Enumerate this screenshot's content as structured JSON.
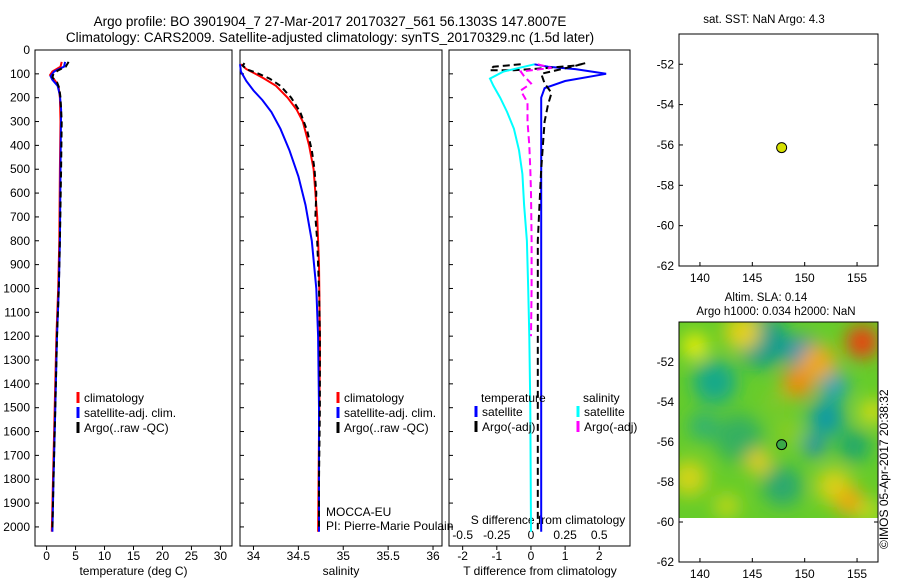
{
  "title_line1": "Argo profile: BO 3901904_7 27-Mar-2017 20170327_561 56.1303S 147.8007E",
  "title_line2": "Climatology: CARS2009. Satellite-adjusted climatology: synTS_20170329.nc (1.5d later)",
  "sst_title": "sat. SST: NaN Argo: 4.3",
  "sla_title1": "Altim. SLA: 0.14",
  "sla_title2": "Argo h1000: 0.034 h2000: NaN",
  "platform": "MOCCA-EU",
  "pi": "PI: Pierre-Marie Poulain",
  "imos_stamp": "©IMOS 05-Apr-2017 20:38:32",
  "colors": {
    "climatology": "#ff0000",
    "satellite": "#0000ff",
    "argo": "#000000",
    "sal_satellite": "#00ffff",
    "sal_argo": "#ff00ff",
    "float_marker": "#d6e000"
  },
  "chart_data": [
    {
      "type": "line",
      "id": "temperature",
      "xlabel": "temperature (deg C)",
      "ylabel": "",
      "xlim": [
        -2,
        32
      ],
      "ylim": [
        2080,
        0
      ],
      "xticks": [
        0,
        5,
        10,
        15,
        20,
        25,
        30
      ],
      "yticks": [
        0,
        100,
        200,
        300,
        400,
        500,
        600,
        700,
        800,
        900,
        1000,
        1100,
        1200,
        1300,
        1400,
        1500,
        1600,
        1700,
        1800,
        1900,
        2000
      ],
      "legend": [
        "climatology",
        "satellite-adj. clim.",
        "Argo(..raw -QC)"
      ],
      "series": [
        {
          "name": "climatology",
          "color": "#ff0000",
          "dash": "",
          "points": [
            [
              2.6,
              50
            ],
            [
              2.4,
              70
            ],
            [
              1.0,
              90
            ],
            [
              0.6,
              105
            ],
            [
              1.2,
              120
            ],
            [
              1.8,
              140
            ],
            [
              2.1,
              160
            ],
            [
              2.3,
              200
            ],
            [
              2.4,
              300
            ],
            [
              2.3,
              500
            ],
            [
              2.2,
              800
            ],
            [
              2.0,
              1000
            ],
            [
              1.7,
              1200
            ],
            [
              1.4,
              1500
            ],
            [
              1.1,
              1800
            ],
            [
              0.9,
              2020
            ]
          ]
        },
        {
          "name": "satellite-adj. clim.",
          "color": "#0000ff",
          "dash": "",
          "points": [
            [
              3.2,
              50
            ],
            [
              3.0,
              70
            ],
            [
              1.3,
              90
            ],
            [
              0.7,
              110
            ],
            [
              1.0,
              125
            ],
            [
              1.9,
              150
            ],
            [
              2.3,
              190
            ],
            [
              2.5,
              250
            ],
            [
              2.4,
              500
            ],
            [
              2.3,
              800
            ],
            [
              2.1,
              1000
            ],
            [
              1.8,
              1200
            ],
            [
              1.5,
              1500
            ],
            [
              1.2,
              1800
            ],
            [
              1.0,
              2020
            ]
          ]
        },
        {
          "name": "Argo(..raw -QC)",
          "color": "#000000",
          "dash": "6,4",
          "points": [
            [
              3.8,
              50
            ],
            [
              3.3,
              70
            ],
            [
              2.0,
              85
            ],
            [
              1.2,
              100
            ],
            [
              1.0,
              115
            ],
            [
              1.8,
              135
            ],
            [
              2.2,
              160
            ],
            [
              2.4,
              200
            ],
            [
              2.6,
              300
            ],
            [
              2.5,
              500
            ],
            [
              2.3,
              800
            ],
            [
              2.1,
              1000
            ],
            [
              1.8,
              1200
            ],
            [
              1.5,
              1500
            ],
            [
              1.2,
              1800
            ],
            [
              1.0,
              2010
            ]
          ]
        }
      ]
    },
    {
      "type": "line",
      "id": "salinity",
      "xlabel": "salinity",
      "ylabel": "",
      "xlim": [
        33.85,
        36.1
      ],
      "ylim": [
        2080,
        0
      ],
      "xticks": [
        34,
        34.5,
        35,
        35.5,
        36
      ],
      "legend": [
        "climatology",
        "satellite-adj. clim.",
        "Argo(..raw -QC)"
      ],
      "series": [
        {
          "name": "climatology",
          "color": "#ff0000",
          "dash": "",
          "points": [
            [
              33.86,
              60
            ],
            [
              33.92,
              80
            ],
            [
              34.02,
              100
            ],
            [
              34.12,
              120
            ],
            [
              34.25,
              150
            ],
            [
              34.38,
              200
            ],
            [
              34.48,
              250
            ],
            [
              34.55,
              300
            ],
            [
              34.62,
              400
            ],
            [
              34.67,
              500
            ],
            [
              34.71,
              700
            ],
            [
              34.73,
              900
            ],
            [
              34.74,
              1200
            ],
            [
              34.74,
              1300
            ],
            [
              34.73,
              1600
            ],
            [
              34.72,
              2020
            ]
          ]
        },
        {
          "name": "satellite-adj. clim.",
          "color": "#0000ff",
          "dash": "",
          "points": [
            [
              33.85,
              60
            ],
            [
              33.86,
              90
            ],
            [
              33.92,
              130
            ],
            [
              34.0,
              170
            ],
            [
              34.1,
              210
            ],
            [
              34.2,
              260
            ],
            [
              34.3,
              330
            ],
            [
              34.4,
              420
            ],
            [
              34.5,
              530
            ],
            [
              34.58,
              650
            ],
            [
              34.65,
              800
            ],
            [
              34.7,
              1000
            ],
            [
              34.72,
              1200
            ],
            [
              34.73,
              1500
            ],
            [
              34.73,
              2020
            ]
          ]
        },
        {
          "name": "Argo(..raw -QC)",
          "color": "#000000",
          "dash": "6,4",
          "points": [
            [
              33.9,
              55
            ],
            [
              33.88,
              65
            ],
            [
              33.92,
              80
            ],
            [
              34.06,
              100
            ],
            [
              34.18,
              120
            ],
            [
              34.3,
              150
            ],
            [
              34.42,
              200
            ],
            [
              34.52,
              260
            ],
            [
              34.6,
              340
            ],
            [
              34.65,
              420
            ],
            [
              34.68,
              500
            ],
            [
              34.7,
              600
            ],
            [
              34.69,
              700
            ],
            [
              34.71,
              800
            ],
            [
              34.72,
              900
            ],
            [
              34.73,
              1000
            ],
            [
              34.74,
              1200
            ],
            [
              34.74,
              1500
            ],
            [
              34.73,
              1800
            ],
            [
              34.73,
              2010
            ]
          ]
        }
      ]
    },
    {
      "type": "line",
      "id": "difference",
      "xlabel": "T difference from climatology",
      "xlabel2": "S difference from climatology",
      "ylabel": "",
      "xlim": [
        -2.4,
        2.9
      ],
      "ylim": [
        2080,
        0
      ],
      "xticks": [
        -2,
        -1,
        0,
        1,
        2
      ],
      "xticks2": [
        -0.5,
        -0.25,
        0,
        0.25,
        0.5
      ],
      "legend_temperature_header": "temperature",
      "legend_salinity_header": "salinity",
      "legend_temperature": [
        "satellite",
        "Argo(-adj)"
      ],
      "legend_salinity": [
        "satellite",
        "Argo(-adj)"
      ],
      "series": [
        {
          "name": "satellite",
          "group": "temperature",
          "color": "#0000ff",
          "dash": "",
          "points": [
            [
              0.1,
              60
            ],
            [
              0.5,
              70
            ],
            [
              1.3,
              80
            ],
            [
              2.2,
              100
            ],
            [
              1.0,
              130
            ],
            [
              0.4,
              160
            ],
            [
              0.3,
              200
            ],
            [
              0.3,
              400
            ],
            [
              0.3,
              800
            ],
            [
              0.3,
              1200
            ],
            [
              0.3,
              1600
            ],
            [
              0.3,
              2020
            ]
          ]
        },
        {
          "name": "Argo(-adj)",
          "group": "temperature",
          "color": "#000000",
          "dash": "7,4",
          "points": [
            [
              -0.3,
              60
            ],
            [
              -1.1,
              70
            ],
            [
              -1.2,
              85
            ],
            [
              -0.5,
              85
            ],
            [
              0.5,
              75
            ],
            [
              1.3,
              65
            ],
            [
              1.6,
              55
            ],
            [
              1.2,
              70
            ],
            [
              0.3,
              100
            ],
            [
              0.4,
              140
            ],
            [
              0.6,
              180
            ],
            [
              0.5,
              230
            ],
            [
              0.4,
              300
            ],
            [
              0.3,
              500
            ],
            [
              0.2,
              800
            ],
            [
              0.2,
              1200
            ],
            [
              0.2,
              1600
            ],
            [
              0.2,
              2010
            ]
          ]
        },
        {
          "name": "satellite",
          "group": "salinity",
          "color": "#00ffff",
          "dash": "",
          "points": [
            [
              0.1,
              60
            ],
            [
              -0.8,
              90
            ],
            [
              -1.2,
              120
            ],
            [
              -1.1,
              150
            ],
            [
              -0.9,
              200
            ],
            [
              -0.7,
              260
            ],
            [
              -0.5,
              330
            ],
            [
              -0.35,
              420
            ],
            [
              -0.25,
              520
            ],
            [
              -0.2,
              650
            ],
            [
              -0.12,
              800
            ],
            [
              -0.08,
              1000
            ],
            [
              -0.05,
              1200
            ],
            [
              -0.02,
              1500
            ],
            [
              0.0,
              2020
            ]
          ]
        },
        {
          "name": "Argo(-adj)",
          "group": "salinity",
          "color": "#ff00ff",
          "dash": "7,4",
          "points": [
            [
              0.2,
              60
            ],
            [
              0.6,
              75
            ],
            [
              -0.3,
              90
            ],
            [
              -0.2,
              110
            ],
            [
              0.0,
              140
            ],
            [
              -0.3,
              170
            ],
            [
              -0.1,
              220
            ],
            [
              -0.1,
              300
            ],
            [
              -0.05,
              400
            ],
            [
              -0.02,
              500
            ],
            [
              0.0,
              600
            ],
            [
              0.02,
              800
            ],
            [
              0.02,
              1000
            ],
            [
              0.0,
              1200
            ]
          ]
        }
      ]
    },
    {
      "type": "scatter",
      "id": "sst_map",
      "title": "sat. SST: NaN Argo: 4.3",
      "xlim": [
        138,
        157
      ],
      "ylim": [
        -62,
        -50.5
      ],
      "xticks": [
        140,
        145,
        150,
        155
      ],
      "yticks": [
        -52,
        -54,
        -56,
        -58,
        -60,
        -62
      ],
      "points": [
        {
          "x": 147.8,
          "y": -56.13
        }
      ]
    },
    {
      "type": "heatmap",
      "id": "sla_map",
      "title": "Altim. SLA: 0.14",
      "xlim": [
        138,
        157
      ],
      "ylim": [
        -62,
        -50
      ],
      "xticks": [
        140,
        145,
        150,
        155
      ],
      "yticks": [
        -52,
        -54,
        -56,
        -58,
        -60,
        -62
      ],
      "field_extent": {
        "lon": [
          138,
          157
        ],
        "lat": [
          -60,
          -50
        ]
      },
      "points": [
        {
          "x": 147.8,
          "y": -56.13
        }
      ]
    }
  ]
}
